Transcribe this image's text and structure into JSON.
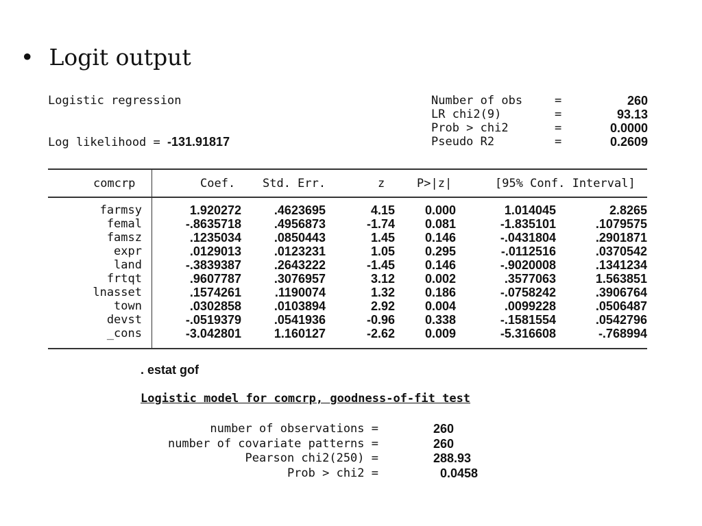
{
  "slide": {
    "bullet": "•",
    "title": "Logit output"
  },
  "header": {
    "model_title": "Logistic regression",
    "loglik_label": "Log likelihood = ",
    "loglik_value": "-131.91817",
    "stats": [
      {
        "label": "Number of obs",
        "eq": "=",
        "value": "260"
      },
      {
        "label": "LR chi2(9)",
        "eq": "=",
        "value": "93.13"
      },
      {
        "label": "Prob > chi2",
        "eq": "=",
        "value": "0.0000"
      },
      {
        "label": "Pseudo R2",
        "eq": "=",
        "value": "0.2609"
      }
    ]
  },
  "table": {
    "columns": [
      "comcrp",
      "Coef.",
      "Std. Err.",
      "z",
      "P>|z|",
      "[95% Conf. Interval]"
    ],
    "rows": [
      {
        "var": "farmsy",
        "coef": "1.920272",
        "se": ".4623695",
        "z": "4.15",
        "p": "0.000",
        "lo": "1.014045",
        "hi": "2.8265"
      },
      {
        "var": "femal",
        "coef": "-.8635718",
        "se": ".4956873",
        "z": "-1.74",
        "p": "0.081",
        "lo": "-1.835101",
        "hi": ".1079575"
      },
      {
        "var": "famsz",
        "coef": ".1235034",
        "se": ".0850443",
        "z": "1.45",
        "p": "0.146",
        "lo": "-.0431804",
        "hi": ".2901871"
      },
      {
        "var": "expr",
        "coef": ".0129013",
        "se": ".0123231",
        "z": "1.05",
        "p": "0.295",
        "lo": "-.0112516",
        "hi": ".0370542"
      },
      {
        "var": "land",
        "coef": "-.3839387",
        "se": ".2643222",
        "z": "-1.45",
        "p": "0.146",
        "lo": "-.9020008",
        "hi": ".1341234"
      },
      {
        "var": "frtqt",
        "coef": ".9607787",
        "se": ".3076957",
        "z": "3.12",
        "p": "0.002",
        "lo": ".3577063",
        "hi": "1.563851"
      },
      {
        "var": "lnasset",
        "coef": ".1574261",
        "se": ".1190074",
        "z": "1.32",
        "p": "0.186",
        "lo": "-.0758242",
        "hi": ".3906764"
      },
      {
        "var": "town",
        "coef": ".0302858",
        "se": ".0103894",
        "z": "2.92",
        "p": "0.004",
        "lo": ".0099228",
        "hi": ".0506487"
      },
      {
        "var": "devst",
        "coef": "-.0519379",
        "se": ".0541936",
        "z": "-0.96",
        "p": "0.338",
        "lo": "-.1581554",
        "hi": ".0542796"
      },
      {
        "var": "_cons",
        "coef": "-3.042801",
        "se": "1.160127",
        "z": "-2.62",
        "p": "0.009",
        "lo": "-5.316608",
        "hi": "-.768994"
      }
    ]
  },
  "gof": {
    "command": ". estat gof",
    "title": "Logistic model for comcrp, goodness-of-fit test",
    "rows": [
      {
        "label": "number of observations =",
        "value": "260"
      },
      {
        "label": "number of covariate patterns =",
        "value": "260"
      },
      {
        "label": "Pearson chi2(250) =",
        "value": "288.93"
      },
      {
        "label": "Prob > chi2 =",
        "value": "  0.0458"
      }
    ]
  }
}
